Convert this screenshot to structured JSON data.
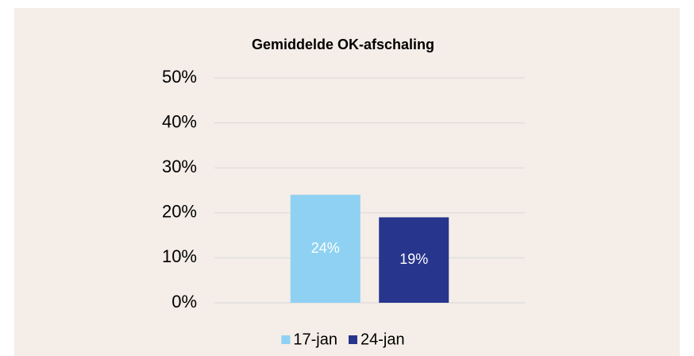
{
  "chart_data": {
    "type": "bar",
    "title": "Gemiddelde OK-afschaling",
    "categories": [
      null
    ],
    "series": [
      {
        "name": "17-jan",
        "color": "#8fd1f2",
        "values": [
          24
        ],
        "value_labels": [
          "24%"
        ]
      },
      {
        "name": "24-jan",
        "color": "#27358c",
        "values": [
          19
        ],
        "value_labels": [
          "19%"
        ]
      }
    ],
    "ylim": [
      0,
      50
    ],
    "yticks": [
      {
        "value": 0,
        "label": "0%"
      },
      {
        "value": 10,
        "label": "10%"
      },
      {
        "value": 20,
        "label": "20%"
      },
      {
        "value": 30,
        "label": "30%"
      },
      {
        "value": 40,
        "label": "40%"
      },
      {
        "value": 50,
        "label": "50%"
      }
    ],
    "grid": true,
    "legend": "bottom"
  }
}
